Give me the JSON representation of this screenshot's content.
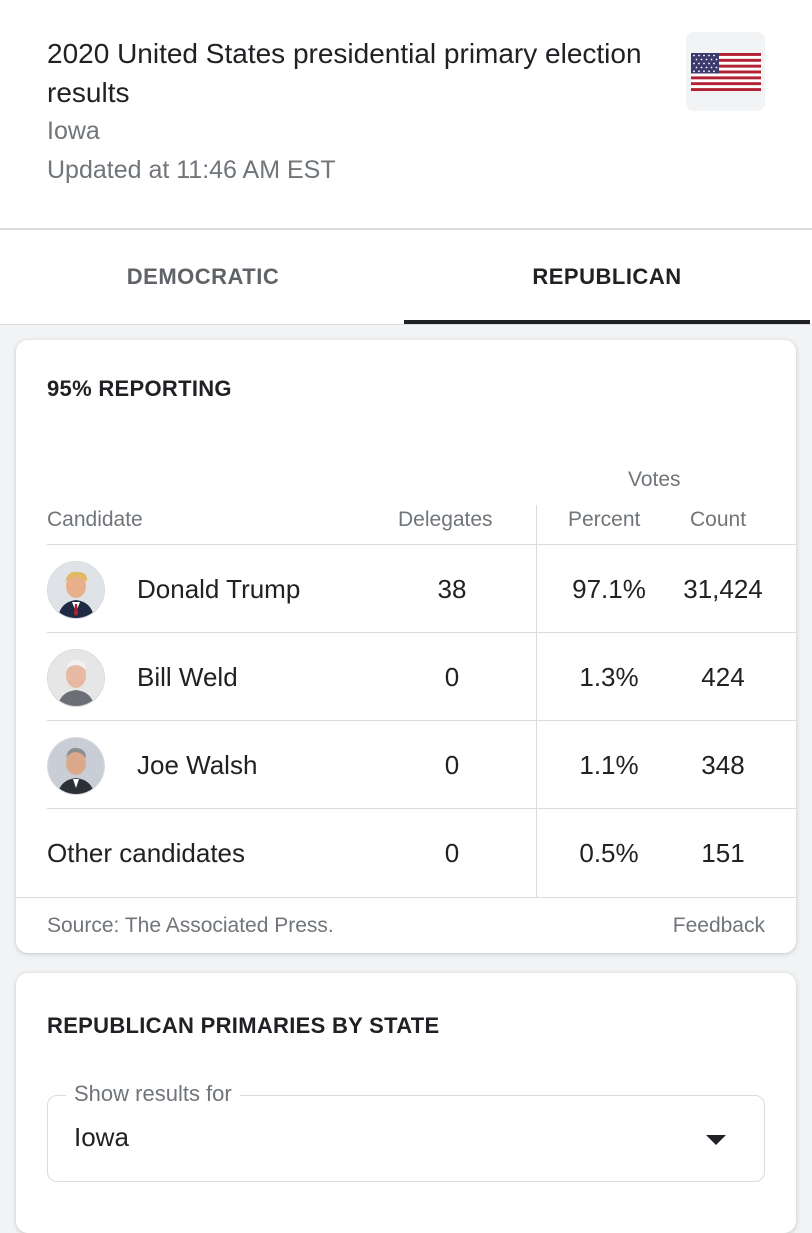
{
  "header": {
    "title": "2020 United States presidential primary election results",
    "state": "Iowa",
    "updated": "Updated at 11:46 AM EST",
    "flag_icon": "us-flag-icon"
  },
  "tabs": [
    {
      "label": "DEMOCRATIC",
      "selected": false
    },
    {
      "label": "REPUBLICAN",
      "selected": true
    }
  ],
  "results": {
    "reporting": "95% REPORTING",
    "columns": {
      "votes_group": "Votes",
      "candidate": "Candidate",
      "delegates": "Delegates",
      "percent": "Percent",
      "count": "Count"
    },
    "rows": [
      {
        "name": "Donald Trump",
        "delegates": "38",
        "percent": "97.1%",
        "count": "31,424",
        "avatar": "candidate-photo"
      },
      {
        "name": "Bill Weld",
        "delegates": "0",
        "percent": "1.3%",
        "count": "424",
        "avatar": "candidate-photo"
      },
      {
        "name": "Joe Walsh",
        "delegates": "0",
        "percent": "1.1%",
        "count": "348",
        "avatar": "candidate-photo"
      },
      {
        "name": "Other candidates",
        "delegates": "0",
        "percent": "0.5%",
        "count": "151"
      }
    ],
    "source": "Source: The Associated Press.",
    "feedback": "Feedback"
  },
  "by_state": {
    "heading": "REPUBLICAN PRIMARIES BY STATE",
    "select_label": "Show results for",
    "select_value": "Iowa"
  },
  "colors": {
    "text_primary": "#202124",
    "text_secondary": "#70757a",
    "divider": "#dadce0",
    "flag_red": "#b22234",
    "flag_blue": "#3c3b6e"
  }
}
